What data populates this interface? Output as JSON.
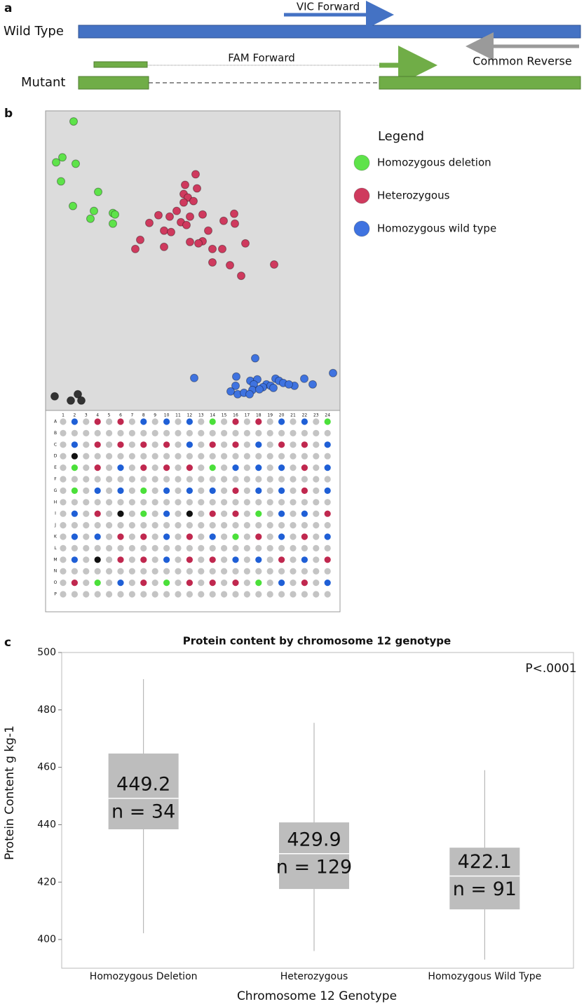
{
  "panel_labels": [
    "a",
    "b",
    "c"
  ],
  "diagram": {
    "wild_type": "Wild Type",
    "mutant": "Mutant",
    "vic_forward": "VIC Forward",
    "fam_forward": "FAM Forward",
    "common_reverse": "Common  Reverse"
  },
  "chart_data": [
    {
      "type": "scatter",
      "legend_title": "Legend",
      "xlim": [
        0,
        420
      ],
      "ylim": [
        0,
        425
      ],
      "series": [
        {
          "name": "Homozygous deletion",
          "color": "#5ee34a",
          "x": [
            40,
            24,
            15,
            43,
            22,
            75,
            39,
            69,
            96,
            99,
            64,
            96
          ],
          "y": [
            410,
            359,
            352,
            350,
            325,
            310,
            290,
            283,
            280,
            278,
            272,
            265
          ]
        },
        {
          "name": "Heterozygous",
          "color": "#cf3a5e",
          "x": [
            214,
            199,
            216,
            197,
            203,
            211,
            197,
            187,
            224,
            161,
            206,
            269,
            177,
            254,
            148,
            193,
            201,
            270,
            169,
            179,
            232,
            135,
            224,
            218,
            206,
            285,
            238,
            252,
            128,
            169,
            238,
            263,
            326,
            279
          ],
          "y": [
            335,
            320,
            315,
            307,
            302,
            297,
            295,
            283,
            278,
            277,
            275,
            279,
            275,
            269,
            266,
            267,
            263,
            265,
            255,
            253,
            255,
            242,
            240,
            237,
            239,
            237,
            229,
            229,
            229,
            232,
            210,
            206,
            207,
            191
          ]
        },
        {
          "name": "Homozygous wild type",
          "color": "#3f73e0",
          "x": [
            299,
            212,
            410,
            272,
            369,
            381,
            292,
            302,
            328,
            333,
            339,
            355,
            271,
            297,
            315,
            321,
            310,
            264,
            274,
            283,
            295,
            305,
            291,
            325,
            347
          ],
          "y": [
            74,
            46,
            53,
            48,
            45,
            37,
            42,
            44,
            45,
            42,
            39,
            35,
            35,
            37,
            37,
            35,
            33,
            27,
            23,
            25,
            29,
            30,
            23,
            32,
            37
          ]
        },
        {
          "color": "#333333",
          "x": [
            13,
            46,
            36,
            51
          ],
          "y": [
            20,
            23,
            14,
            14
          ]
        }
      ],
      "plate": {
        "columns": [
          1,
          2,
          3,
          4,
          5,
          6,
          7,
          8,
          9,
          10,
          11,
          12,
          13,
          14,
          15,
          16,
          17,
          18,
          19,
          20,
          21,
          22,
          23,
          24
        ],
        "rows": [
          "A",
          "B",
          "C",
          "D",
          "E",
          "F",
          "G",
          "H",
          "I",
          "J",
          "K",
          "L",
          "M",
          "N",
          "O",
          "P"
        ],
        "well_colors": [
          "#4be03a",
          "#c0284f",
          "#1f5fd6",
          "#111111",
          "#c4c4c4"
        ],
        "wells": [
          [
            4,
            2,
            4,
            1,
            4,
            1,
            4,
            2,
            4,
            2,
            4,
            2,
            4,
            0,
            4,
            1,
            4,
            1,
            4,
            2,
            4,
            2,
            4,
            0
          ],
          [
            4,
            4,
            4,
            4,
            4,
            4,
            4,
            4,
            4,
            4,
            4,
            4,
            4,
            4,
            4,
            4,
            4,
            4,
            4,
            4,
            4,
            4,
            4,
            4
          ],
          [
            4,
            2,
            4,
            1,
            4,
            1,
            4,
            1,
            4,
            1,
            4,
            2,
            4,
            1,
            4,
            1,
            4,
            2,
            4,
            1,
            4,
            1,
            4,
            2
          ],
          [
            4,
            3,
            4,
            4,
            4,
            4,
            4,
            4,
            4,
            4,
            4,
            4,
            4,
            4,
            4,
            4,
            4,
            4,
            4,
            4,
            4,
            4,
            4,
            4
          ],
          [
            4,
            0,
            4,
            1,
            4,
            2,
            4,
            1,
            4,
            1,
            4,
            1,
            4,
            0,
            4,
            2,
            4,
            2,
            4,
            2,
            4,
            1,
            4,
            2
          ],
          [
            4,
            4,
            4,
            4,
            4,
            4,
            4,
            4,
            4,
            4,
            4,
            4,
            4,
            4,
            4,
            4,
            4,
            4,
            4,
            4,
            4,
            4,
            4,
            4
          ],
          [
            4,
            0,
            4,
            2,
            4,
            2,
            4,
            0,
            4,
            2,
            4,
            2,
            4,
            2,
            4,
            1,
            4,
            2,
            4,
            2,
            4,
            1,
            4,
            2
          ],
          [
            4,
            4,
            4,
            4,
            4,
            4,
            4,
            4,
            4,
            4,
            4,
            4,
            4,
            4,
            4,
            4,
            4,
            4,
            4,
            4,
            4,
            4,
            4,
            4
          ],
          [
            4,
            2,
            4,
            1,
            4,
            3,
            4,
            0,
            4,
            2,
            4,
            3,
            4,
            1,
            4,
            1,
            4,
            0,
            4,
            2,
            4,
            2,
            4,
            1
          ],
          [
            4,
            4,
            4,
            4,
            4,
            4,
            4,
            4,
            4,
            4,
            4,
            4,
            4,
            4,
            4,
            4,
            4,
            4,
            4,
            4,
            4,
            4,
            4,
            4
          ],
          [
            4,
            2,
            4,
            2,
            4,
            1,
            4,
            1,
            4,
            2,
            4,
            1,
            4,
            2,
            4,
            0,
            4,
            1,
            4,
            2,
            4,
            1,
            4,
            2
          ],
          [
            4,
            4,
            4,
            4,
            4,
            4,
            4,
            4,
            4,
            4,
            4,
            4,
            4,
            4,
            4,
            4,
            4,
            4,
            4,
            4,
            4,
            4,
            4,
            4
          ],
          [
            4,
            2,
            4,
            3,
            4,
            1,
            4,
            1,
            4,
            2,
            4,
            1,
            4,
            1,
            4,
            2,
            4,
            2,
            4,
            1,
            4,
            2,
            4,
            1
          ],
          [
            4,
            4,
            4,
            4,
            4,
            4,
            4,
            4,
            4,
            4,
            4,
            4,
            4,
            4,
            4,
            4,
            4,
            4,
            4,
            4,
            4,
            4,
            4,
            4
          ],
          [
            4,
            1,
            4,
            0,
            4,
            2,
            4,
            1,
            4,
            0,
            4,
            1,
            4,
            1,
            4,
            1,
            4,
            0,
            4,
            2,
            4,
            1,
            4,
            2
          ],
          [
            4,
            4,
            4,
            4,
            4,
            4,
            4,
            4,
            4,
            4,
            4,
            4,
            4,
            4,
            4,
            4,
            4,
            4,
            4,
            4,
            4,
            4,
            4,
            4
          ]
        ]
      }
    },
    {
      "type": "box",
      "title": "Protein content by chromosome 12 genotype",
      "annotation": "P<.0001",
      "x_label": "Chromosome 12 Genotype",
      "y_label": "Protein Content g kg-1",
      "categories": [
        "Homozygous Deletion",
        "Heterozygous",
        "Homozygous Wild Type"
      ],
      "means": [
        449.2,
        429.9,
        422.1
      ],
      "n_labels": [
        "n = 34",
        "n = 129",
        "n = 91"
      ],
      "box_low": [
        438.4,
        417.6,
        410.5
      ],
      "box_high": [
        464.8,
        440.8,
        432.0
      ],
      "whisker_low": [
        402.2,
        396.0,
        393.0
      ],
      "whisker_high": [
        490.7,
        475.5,
        459.0
      ],
      "box_color": "#bdbdbd",
      "ylim": [
        390,
        500
      ],
      "yticks": [
        400,
        420,
        440,
        460,
        480,
        500
      ]
    }
  ]
}
